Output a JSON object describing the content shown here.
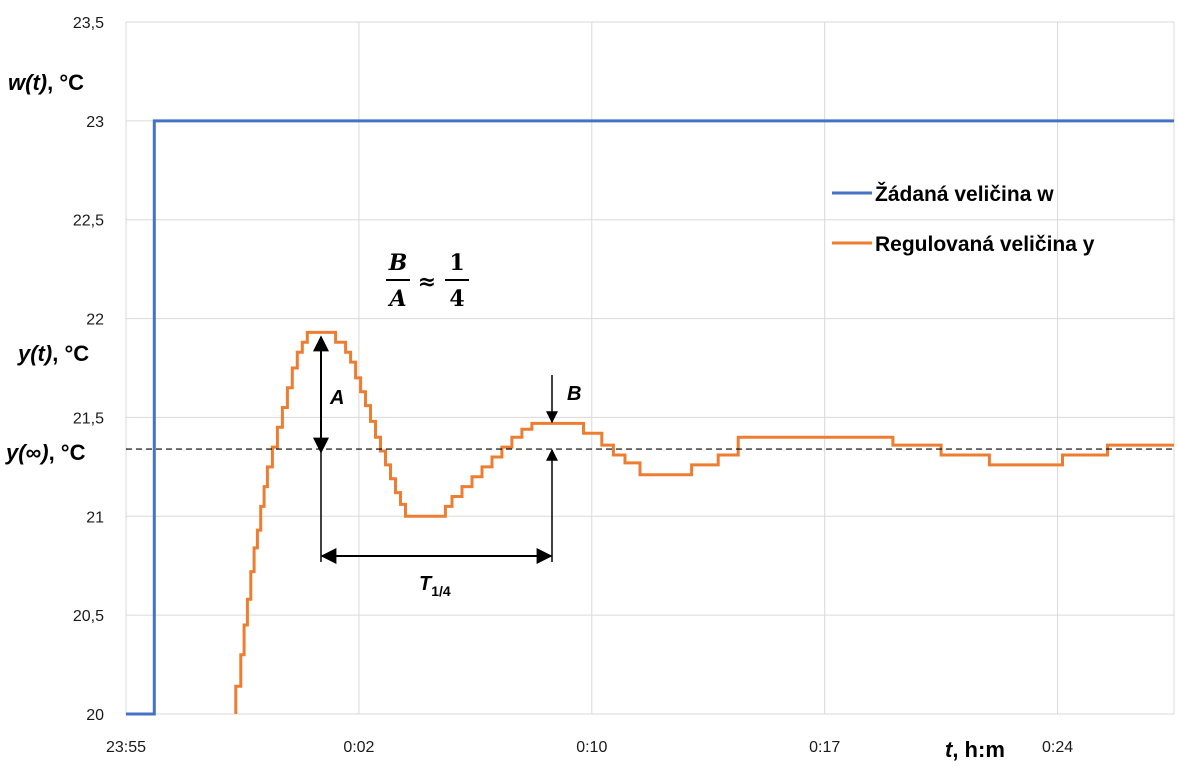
{
  "chart_data": {
    "type": "line",
    "x_axis": {
      "ticks": [
        "23:55",
        "0:02",
        "0:10",
        "0:17",
        "0:24"
      ],
      "tick_minutes": [
        0,
        7,
        14,
        21,
        28
      ],
      "range_minutes": [
        0,
        31.5
      ],
      "label_var": "t",
      "label_unit": ", h:m"
    },
    "y_axis": {
      "ylim": [
        20,
        23.5
      ],
      "ticks": [
        "20",
        "20,5",
        "21",
        "21,5",
        "22",
        "22,5",
        "23",
        "23,5"
      ],
      "tick_values": [
        20,
        20.5,
        21,
        21.5,
        22,
        22.5,
        23,
        23.5
      ],
      "label_w_var": "w(t)",
      "label_w_unit": ", °C",
      "label_y_var": "y(t)",
      "label_y_unit": ", °C",
      "label_yinf_var": "y(∞)",
      "label_yinf_unit": ", °C"
    },
    "grid": true,
    "series": [
      {
        "name": "Žádaná veličina w",
        "color": "#4472C4",
        "points": [
          [
            0,
            20
          ],
          [
            0.85,
            20
          ],
          [
            0.85,
            23
          ],
          [
            31.5,
            23
          ]
        ]
      },
      {
        "name": "Regulovaná veličina y",
        "color": "#ED7D31",
        "points": [
          [
            3.3,
            20
          ],
          [
            3.3,
            20.14
          ],
          [
            3.45,
            20.14
          ],
          [
            3.45,
            20.3
          ],
          [
            3.55,
            20.3
          ],
          [
            3.55,
            20.45
          ],
          [
            3.65,
            20.45
          ],
          [
            3.65,
            20.58
          ],
          [
            3.75,
            20.58
          ],
          [
            3.75,
            20.72
          ],
          [
            3.85,
            20.72
          ],
          [
            3.85,
            20.84
          ],
          [
            3.95,
            20.84
          ],
          [
            3.95,
            20.93
          ],
          [
            4.05,
            20.93
          ],
          [
            4.05,
            21.05
          ],
          [
            4.15,
            21.05
          ],
          [
            4.15,
            21.15
          ],
          [
            4.25,
            21.15
          ],
          [
            4.25,
            21.25
          ],
          [
            4.4,
            21.25
          ],
          [
            4.4,
            21.35
          ],
          [
            4.55,
            21.35
          ],
          [
            4.55,
            21.45
          ],
          [
            4.7,
            21.45
          ],
          [
            4.7,
            21.55
          ],
          [
            4.85,
            21.55
          ],
          [
            4.85,
            21.65
          ],
          [
            5.0,
            21.65
          ],
          [
            5.0,
            21.75
          ],
          [
            5.15,
            21.75
          ],
          [
            5.15,
            21.83
          ],
          [
            5.3,
            21.83
          ],
          [
            5.3,
            21.88
          ],
          [
            5.45,
            21.88
          ],
          [
            5.45,
            21.93
          ],
          [
            6.3,
            21.93
          ],
          [
            6.3,
            21.88
          ],
          [
            6.6,
            21.88
          ],
          [
            6.6,
            21.83
          ],
          [
            6.75,
            21.83
          ],
          [
            6.75,
            21.78
          ],
          [
            6.9,
            21.78
          ],
          [
            6.9,
            21.7
          ],
          [
            7.05,
            21.7
          ],
          [
            7.05,
            21.63
          ],
          [
            7.2,
            21.63
          ],
          [
            7.2,
            21.56
          ],
          [
            7.35,
            21.56
          ],
          [
            7.35,
            21.48
          ],
          [
            7.5,
            21.48
          ],
          [
            7.5,
            21.4
          ],
          [
            7.65,
            21.4
          ],
          [
            7.65,
            21.33
          ],
          [
            7.8,
            21.33
          ],
          [
            7.8,
            21.26
          ],
          [
            7.95,
            21.26
          ],
          [
            7.95,
            21.19
          ],
          [
            8.1,
            21.19
          ],
          [
            8.1,
            21.12
          ],
          [
            8.25,
            21.12
          ],
          [
            8.25,
            21.06
          ],
          [
            8.4,
            21.06
          ],
          [
            8.4,
            21.0
          ],
          [
            9.6,
            21.0
          ],
          [
            9.6,
            21.05
          ],
          [
            9.8,
            21.05
          ],
          [
            9.8,
            21.1
          ],
          [
            10.1,
            21.1
          ],
          [
            10.1,
            21.15
          ],
          [
            10.4,
            21.15
          ],
          [
            10.4,
            21.2
          ],
          [
            10.7,
            21.2
          ],
          [
            10.7,
            21.25
          ],
          [
            11.0,
            21.25
          ],
          [
            11.0,
            21.3
          ],
          [
            11.3,
            21.3
          ],
          [
            11.3,
            21.35
          ],
          [
            11.6,
            21.35
          ],
          [
            11.6,
            21.4
          ],
          [
            11.9,
            21.4
          ],
          [
            11.9,
            21.44
          ],
          [
            12.2,
            21.44
          ],
          [
            12.2,
            21.47
          ],
          [
            13.75,
            21.47
          ],
          [
            13.75,
            21.42
          ],
          [
            14.3,
            21.42
          ],
          [
            14.3,
            21.36
          ],
          [
            14.65,
            21.36
          ],
          [
            14.65,
            21.31
          ],
          [
            15.0,
            21.31
          ],
          [
            15.0,
            21.27
          ],
          [
            15.45,
            21.27
          ],
          [
            15.45,
            21.21
          ],
          [
            17.0,
            21.21
          ],
          [
            17.0,
            21.26
          ],
          [
            17.8,
            21.26
          ],
          [
            17.8,
            21.31
          ],
          [
            18.4,
            21.31
          ],
          [
            18.4,
            21.4
          ],
          [
            23.05,
            21.4
          ],
          [
            23.05,
            21.36
          ],
          [
            24.5,
            21.36
          ],
          [
            24.5,
            21.31
          ],
          [
            25.95,
            21.31
          ],
          [
            25.95,
            21.26
          ],
          [
            28.15,
            21.26
          ],
          [
            28.15,
            21.31
          ],
          [
            29.5,
            21.31
          ],
          [
            29.5,
            21.36
          ],
          [
            31.5,
            21.36
          ]
        ]
      }
    ],
    "reference_line": {
      "y": 21.34,
      "style": "dashed"
    },
    "annotations": {
      "A": "A",
      "B": "B",
      "T_main": "T",
      "T_sub": "1/4",
      "formula_num_left": "B",
      "formula_den_left": "A",
      "formula_approx": "≈",
      "formula_num_right": "1",
      "formula_den_right": "4"
    },
    "legend": {
      "position": "top-right"
    }
  }
}
